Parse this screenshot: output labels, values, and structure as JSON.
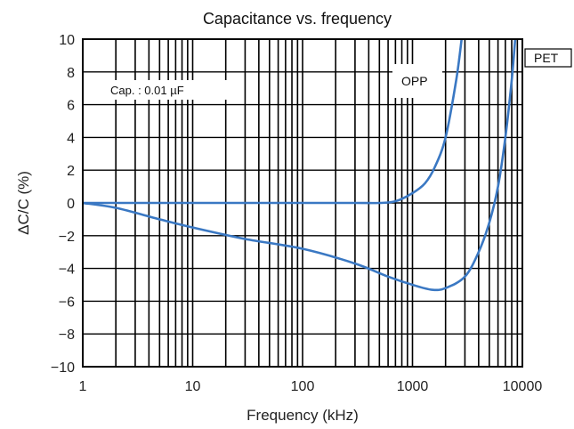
{
  "chart_data": {
    "type": "line",
    "title": "Capacitance vs. frequency",
    "xlabel": "Frequency (kHz)",
    "ylabel": "ΔC/C  (%)",
    "xscale": "log",
    "xlim": [
      1,
      10000
    ],
    "ylim": [
      -10,
      10
    ],
    "x_ticks": [
      1,
      10,
      100,
      1000,
      10000
    ],
    "x_tick_labels": [
      "1",
      "10",
      "100",
      "1000",
      "10000"
    ],
    "y_ticks": [
      10,
      8,
      6,
      4,
      2,
      0,
      -2,
      -4,
      -6,
      -8,
      -10
    ],
    "y_tick_labels": [
      "10",
      "8",
      "6",
      "4",
      "2",
      "0",
      "−2",
      "−4",
      "−6",
      "−8",
      "−10"
    ],
    "grid": true,
    "line_color": "#3a78c3",
    "annotations": [
      {
        "text": "Cap. : 0.01 µF"
      }
    ],
    "series": [
      {
        "name": "OPP",
        "x": [
          1,
          2,
          5,
          10,
          50,
          100,
          300,
          500,
          700,
          1000,
          1300,
          1600,
          2000,
          2500,
          2800
        ],
        "values": [
          0,
          0,
          0,
          0,
          0,
          0,
          0,
          0,
          0.1,
          0.6,
          1.2,
          2.2,
          4.0,
          7.5,
          10
        ]
      },
      {
        "name": "PET",
        "x": [
          1,
          2,
          5,
          10,
          30,
          100,
          300,
          600,
          1000,
          1500,
          2000,
          3000,
          4000,
          5000,
          6000,
          7000,
          8000,
          8600
        ],
        "values": [
          0,
          -0.3,
          -1.0,
          -1.5,
          -2.2,
          -2.8,
          -3.7,
          -4.5,
          -5.0,
          -5.3,
          -5.2,
          -4.5,
          -3.0,
          -1.2,
          1.0,
          4.0,
          7.5,
          10
        ]
      }
    ]
  }
}
